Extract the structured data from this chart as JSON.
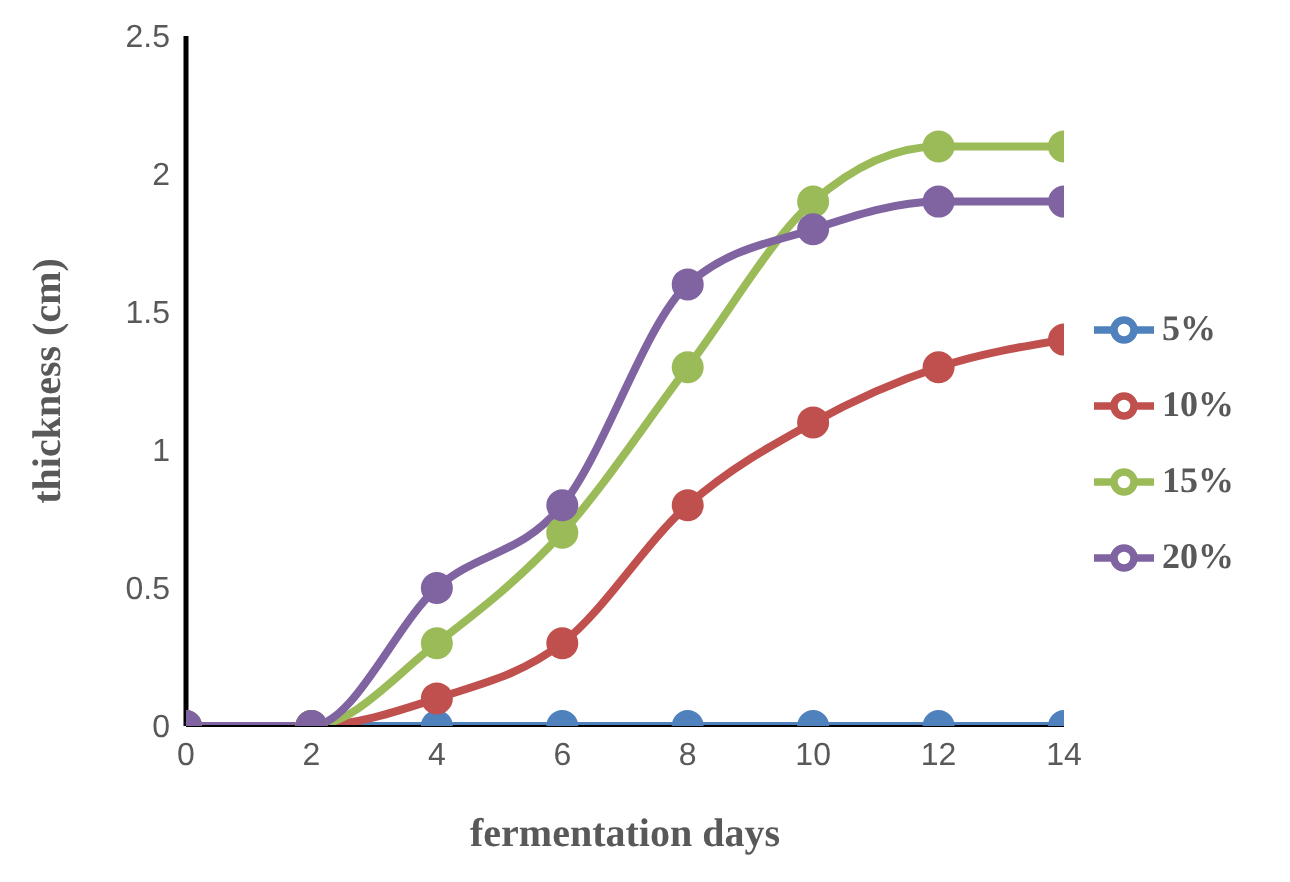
{
  "chart_data": {
    "type": "line",
    "xlabel": "fermentation days",
    "ylabel": "thickness (cm)",
    "x": [
      0,
      2,
      4,
      6,
      8,
      10,
      12,
      14
    ],
    "xlim": [
      0,
      14
    ],
    "xticks": [
      0,
      2,
      4,
      6,
      8,
      10,
      12,
      14
    ],
    "ylim": [
      0,
      2.5
    ],
    "yticks": [
      0,
      0.5,
      1,
      1.5,
      2,
      2.5
    ],
    "grid": false,
    "legend": "right",
    "marker": "circle",
    "line_style": "solid",
    "series": [
      {
        "name": "5%",
        "color": "#4f81bd",
        "values": [
          0,
          0,
          0,
          0,
          0,
          0,
          0,
          0
        ]
      },
      {
        "name": "10%",
        "color": "#c0504d",
        "values": [
          0,
          0,
          0.1,
          0.3,
          0.8,
          1.1,
          1.3,
          1.4
        ]
      },
      {
        "name": "15%",
        "color": "#9bbb59",
        "values": [
          0,
          0,
          0.3,
          0.7,
          1.3,
          1.9,
          2.1,
          2.1
        ]
      },
      {
        "name": "20%",
        "color": "#8064a2",
        "values": [
          0,
          0,
          0.5,
          0.8,
          1.6,
          1.8,
          1.9,
          1.9
        ]
      }
    ]
  }
}
